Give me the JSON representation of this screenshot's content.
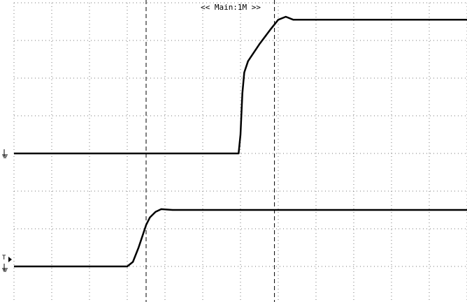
{
  "header": {
    "timebase_label": "<< Main:1M >>"
  },
  "markers": {
    "trigger": "T"
  },
  "chart_data": {
    "type": "line",
    "title": "",
    "xlabel": "",
    "ylabel": "",
    "grid": true,
    "grid_style": "dotted",
    "grid_divisions": {
      "x": 12,
      "y": 8
    },
    "xlim": [
      0,
      12
    ],
    "ylim": [
      0,
      8
    ],
    "cursors_x": [
      3.5,
      6.9
    ],
    "series": [
      {
        "color": "#000000",
        "x": [
          0.0,
          5.95,
          6.0,
          6.05,
          6.1,
          6.2,
          6.5,
          6.8,
          7.0,
          7.2,
          7.4,
          12.0
        ],
        "y": [
          4.0,
          4.0,
          4.5,
          5.6,
          6.15,
          6.45,
          6.9,
          7.3,
          7.55,
          7.63,
          7.55,
          7.55
        ]
      },
      {
        "color": "#000000",
        "x": [
          0.0,
          3.0,
          3.15,
          3.3,
          3.4,
          3.5,
          3.6,
          3.75,
          3.9,
          4.2,
          12.0
        ],
        "y": [
          1.0,
          1.0,
          1.12,
          1.5,
          1.8,
          2.1,
          2.3,
          2.45,
          2.52,
          2.5,
          2.5
        ]
      }
    ]
  }
}
